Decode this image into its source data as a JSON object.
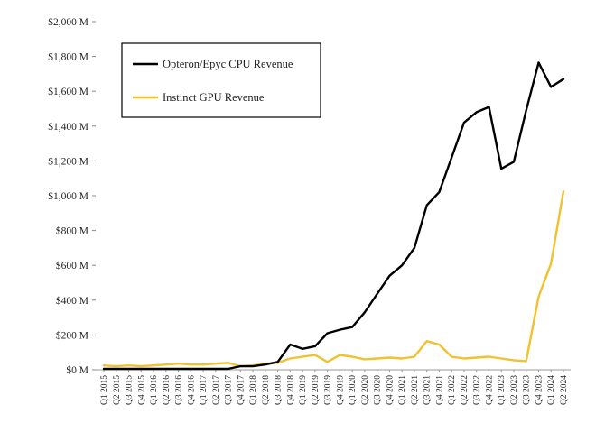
{
  "chart_data": {
    "type": "line",
    "title": "",
    "xlabel": "",
    "ylabel": "",
    "ylim": [
      0,
      2000
    ],
    "y_ticks": [
      {
        "value": 0,
        "label": "$0 M"
      },
      {
        "value": 200,
        "label": "$200 M"
      },
      {
        "value": 400,
        "label": "$400 M"
      },
      {
        "value": 600,
        "label": "$600 M"
      },
      {
        "value": 800,
        "label": "$800 M"
      },
      {
        "value": 1000,
        "label": "$1,000 M"
      },
      {
        "value": 1200,
        "label": "$1,200 M"
      },
      {
        "value": 1400,
        "label": "$1,400 M"
      },
      {
        "value": 1600,
        "label": "$1,600 M"
      },
      {
        "value": 1800,
        "label": "$1,800 M"
      },
      {
        "value": 2000,
        "label": "$2,000 M"
      }
    ],
    "grid": false,
    "legend_position": "top-left",
    "categories": [
      "Q1 2015",
      "Q2 2015",
      "Q3 2015",
      "Q4 2015",
      "Q1 2016",
      "Q2 2016",
      "Q3 2016",
      "Q4 2016",
      "Q1 2017",
      "Q2 2017",
      "Q3 2017",
      "Q4 2017",
      "Q1 2018",
      "Q2 2018",
      "Q3 2018",
      "Q4 2018",
      "Q1 2019",
      "Q2 2019",
      "Q3 2019",
      "Q4 2019",
      "Q1 2020",
      "Q2 2020",
      "Q3 2020",
      "Q4 2020",
      "Q1 2021",
      "Q2 2021",
      "Q3 2021",
      "Q4 2021",
      "Q1 2022",
      "Q2 2022",
      "Q3 2022",
      "Q4 2022",
      "Q1 2023",
      "Q2 2023",
      "Q3 2023",
      "Q4 2023",
      "Q1 2024",
      "Q2 2024"
    ],
    "series": [
      {
        "name": "Opteron/Epyc CPU Revenue",
        "color": "#000000",
        "values": [
          5,
          5,
          5,
          5,
          5,
          5,
          5,
          5,
          5,
          5,
          5,
          20,
          20,
          30,
          45,
          145,
          120,
          135,
          210,
          230,
          245,
          330,
          435,
          540,
          600,
          700,
          945,
          1020,
          1220,
          1420,
          1480,
          1510,
          1155,
          1195,
          1490,
          1765,
          1625,
          1670
        ]
      },
      {
        "name": "Instinct GPU Revenue",
        "color": "#f2c12e",
        "values": [
          25,
          20,
          25,
          20,
          25,
          30,
          35,
          30,
          30,
          35,
          40,
          20,
          25,
          35,
          40,
          65,
          75,
          85,
          45,
          85,
          75,
          60,
          65,
          70,
          65,
          75,
          165,
          145,
          75,
          65,
          70,
          75,
          65,
          55,
          50,
          420,
          610,
          1025
        ]
      }
    ]
  }
}
